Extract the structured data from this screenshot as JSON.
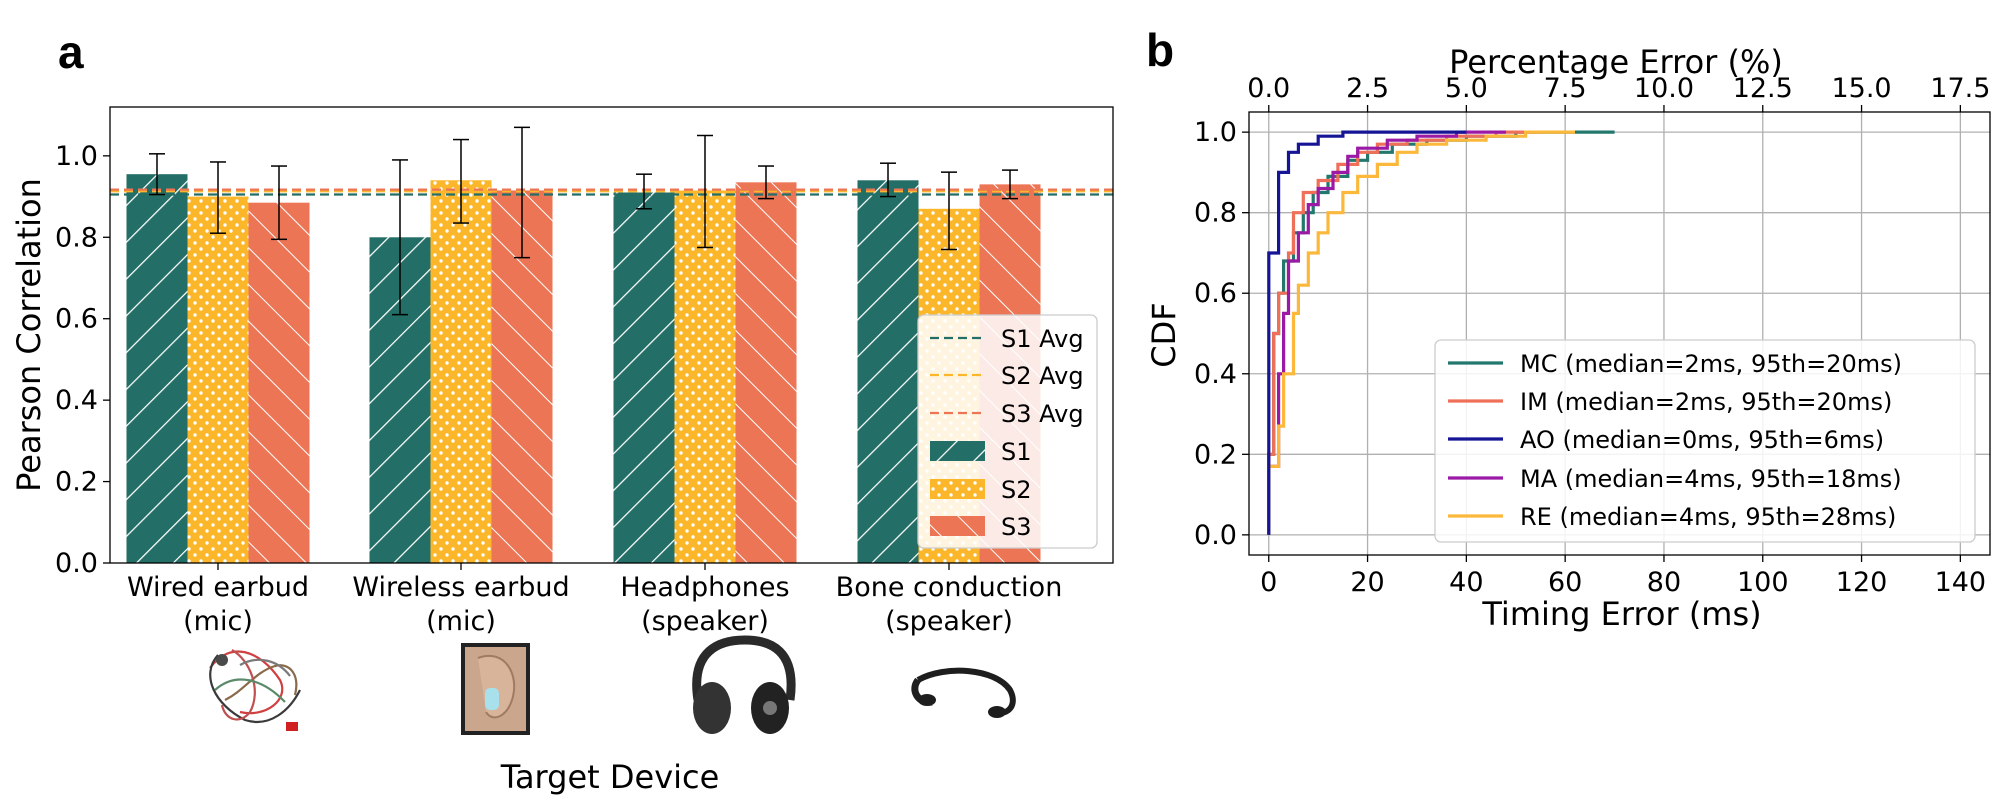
{
  "colors": {
    "s1": "#236e66",
    "s2": "#fbb62a",
    "s3": "#ec7556",
    "mc": "#23786e",
    "im": "#ef6f58",
    "ao": "#151596",
    "ma": "#9a1aa6",
    "re": "#fbb83a"
  },
  "chart_data": [
    {
      "panel": "a",
      "type": "bar",
      "title": "",
      "xlabel": "Target Device",
      "ylabel": "Pearson Correlation",
      "ylim": [
        0.0,
        1.12
      ],
      "yticks": [
        "0.0",
        "0.2",
        "0.4",
        "0.6",
        "0.8",
        "1.0"
      ],
      "categories": [
        {
          "line1": "Wired earbud",
          "line2": "(mic)",
          "icon": "wired-earbud"
        },
        {
          "line1": "Wireless earbud",
          "line2": "(mic)",
          "icon": "wireless-earbud"
        },
        {
          "line1": "Headphones",
          "line2": "(speaker)",
          "icon": "headphones"
        },
        {
          "line1": "Bone conduction",
          "line2": "(speaker)",
          "icon": "bone-conduction"
        }
      ],
      "series": [
        {
          "name": "S1",
          "values": [
            0.955,
            0.8,
            0.91,
            0.94
          ],
          "err_low": [
            0.905,
            0.61,
            0.87,
            0.9
          ],
          "err_high": [
            1.005,
            0.99,
            0.955,
            0.982
          ]
        },
        {
          "name": "S2",
          "values": [
            0.9,
            0.94,
            0.915,
            0.87
          ],
          "err_low": [
            0.81,
            0.835,
            0.775,
            0.77
          ],
          "err_high": [
            0.985,
            1.04,
            1.05,
            0.96
          ]
        },
        {
          "name": "S3",
          "values": [
            0.885,
            0.915,
            0.935,
            0.93
          ],
          "err_low": [
            0.795,
            0.75,
            0.895,
            0.895
          ],
          "err_high": [
            0.975,
            1.07,
            0.975,
            0.965
          ]
        }
      ],
      "averages": [
        {
          "name": "S1 Avg",
          "value": 0.905
        },
        {
          "name": "S2 Avg",
          "value": 0.913
        },
        {
          "name": "S3 Avg",
          "value": 0.917
        }
      ],
      "legend": [
        "S1 Avg",
        "S2 Avg",
        "S3 Avg",
        "S1",
        "S2",
        "S3"
      ],
      "legend_position": "lower-right"
    },
    {
      "panel": "b",
      "type": "line",
      "title": "",
      "xlabel": "Timing Error (ms)",
      "ylabel": "CDF",
      "x2label": "Percentage Error (%)",
      "xlim": [
        -4,
        146
      ],
      "ylim": [
        -0.05,
        1.05
      ],
      "xticks": [
        "0",
        "20",
        "40",
        "60",
        "80",
        "100",
        "120",
        "140"
      ],
      "yticks": [
        "0.0",
        "0.2",
        "0.4",
        "0.6",
        "0.8",
        "1.0"
      ],
      "x2ticks": [
        "0.0",
        "2.5",
        "5.0",
        "7.5",
        "10.0",
        "12.5",
        "15.0",
        "17.5"
      ],
      "grid": true,
      "series": [
        {
          "name": "MC",
          "label": "MC (median=2ms, 95th=20ms)",
          "points": [
            [
              0,
              0
            ],
            [
              0,
              0.2
            ],
            [
              1,
              0.2
            ],
            [
              1,
              0.5
            ],
            [
              2,
              0.5
            ],
            [
              2,
              0.6
            ],
            [
              3,
              0.6
            ],
            [
              3,
              0.68
            ],
            [
              5,
              0.68
            ],
            [
              5,
              0.75
            ],
            [
              7,
              0.75
            ],
            [
              7,
              0.8
            ],
            [
              9,
              0.8
            ],
            [
              9,
              0.85
            ],
            [
              12,
              0.85
            ],
            [
              12,
              0.89
            ],
            [
              16,
              0.89
            ],
            [
              16,
              0.93
            ],
            [
              20,
              0.93
            ],
            [
              20,
              0.95
            ],
            [
              25,
              0.95
            ],
            [
              25,
              0.97
            ],
            [
              32,
              0.97
            ],
            [
              32,
              0.98
            ],
            [
              40,
              0.98
            ],
            [
              40,
              0.99
            ],
            [
              50,
              0.99
            ],
            [
              50,
              1.0
            ],
            [
              70,
              1.0
            ]
          ]
        },
        {
          "name": "IM",
          "label": "IM (median=2ms, 95th=20ms)",
          "points": [
            [
              0,
              0
            ],
            [
              0,
              0.2
            ],
            [
              1,
              0.2
            ],
            [
              1,
              0.5
            ],
            [
              2,
              0.5
            ],
            [
              2,
              0.6
            ],
            [
              4,
              0.6
            ],
            [
              4,
              0.7
            ],
            [
              5,
              0.7
            ],
            [
              5,
              0.8
            ],
            [
              7,
              0.8
            ],
            [
              7,
              0.85
            ],
            [
              10,
              0.85
            ],
            [
              10,
              0.88
            ],
            [
              14,
              0.88
            ],
            [
              14,
              0.92
            ],
            [
              18,
              0.92
            ],
            [
              18,
              0.95
            ],
            [
              22,
              0.95
            ],
            [
              22,
              0.97
            ],
            [
              28,
              0.97
            ],
            [
              28,
              0.98
            ],
            [
              36,
              0.98
            ],
            [
              36,
              0.99
            ],
            [
              46,
              0.99
            ],
            [
              46,
              1.0
            ],
            [
              55,
              1.0
            ]
          ]
        },
        {
          "name": "AO",
          "label": "AO (median=0ms, 95th=6ms)",
          "points": [
            [
              0,
              0
            ],
            [
              0,
              0.7
            ],
            [
              2,
              0.7
            ],
            [
              2,
              0.9
            ],
            [
              4,
              0.9
            ],
            [
              4,
              0.95
            ],
            [
              6,
              0.95
            ],
            [
              6,
              0.97
            ],
            [
              10,
              0.97
            ],
            [
              10,
              0.99
            ],
            [
              15,
              0.99
            ],
            [
              15,
              1.0
            ],
            [
              40,
              1.0
            ]
          ]
        },
        {
          "name": "MA",
          "label": "MA (median=4ms, 95th=18ms)",
          "points": [
            [
              0,
              0
            ],
            [
              0,
              0.17
            ],
            [
              2,
              0.17
            ],
            [
              2,
              0.4
            ],
            [
              3,
              0.4
            ],
            [
              3,
              0.55
            ],
            [
              4,
              0.55
            ],
            [
              4,
              0.68
            ],
            [
              6,
              0.68
            ],
            [
              6,
              0.75
            ],
            [
              8,
              0.75
            ],
            [
              8,
              0.82
            ],
            [
              10,
              0.82
            ],
            [
              10,
              0.86
            ],
            [
              13,
              0.86
            ],
            [
              13,
              0.9
            ],
            [
              16,
              0.9
            ],
            [
              16,
              0.94
            ],
            [
              18,
              0.94
            ],
            [
              18,
              0.96
            ],
            [
              24,
              0.96
            ],
            [
              24,
              0.98
            ],
            [
              30,
              0.98
            ],
            [
              30,
              0.99
            ],
            [
              38,
              0.99
            ],
            [
              38,
              1.0
            ],
            [
              48,
              1.0
            ]
          ]
        },
        {
          "name": "RE",
          "label": "RE (median=4ms, 95th=28ms)",
          "points": [
            [
              0,
              0
            ],
            [
              0,
              0.17
            ],
            [
              2,
              0.17
            ],
            [
              2,
              0.27
            ],
            [
              3,
              0.27
            ],
            [
              3,
              0.4
            ],
            [
              5,
              0.4
            ],
            [
              5,
              0.55
            ],
            [
              6,
              0.55
            ],
            [
              6,
              0.62
            ],
            [
              8,
              0.62
            ],
            [
              8,
              0.7
            ],
            [
              10,
              0.7
            ],
            [
              10,
              0.75
            ],
            [
              12,
              0.75
            ],
            [
              12,
              0.8
            ],
            [
              15,
              0.8
            ],
            [
              15,
              0.85
            ],
            [
              18,
              0.85
            ],
            [
              18,
              0.89
            ],
            [
              22,
              0.89
            ],
            [
              22,
              0.92
            ],
            [
              26,
              0.92
            ],
            [
              26,
              0.95
            ],
            [
              30,
              0.95
            ],
            [
              30,
              0.97
            ],
            [
              36,
              0.97
            ],
            [
              36,
              0.98
            ],
            [
              44,
              0.98
            ],
            [
              44,
              0.99
            ],
            [
              52,
              0.99
            ],
            [
              52,
              1.0
            ],
            [
              62,
              1.0
            ]
          ]
        }
      ],
      "legend_position": "lower-right"
    }
  ]
}
